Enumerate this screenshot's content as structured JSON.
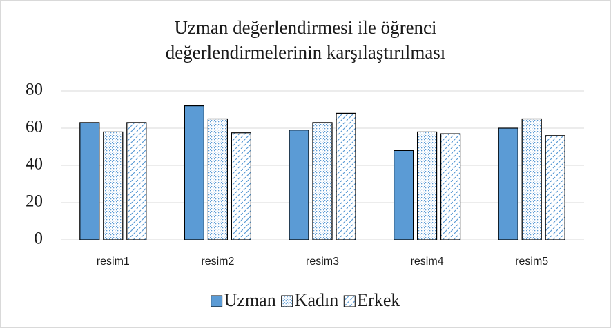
{
  "chart_data": {
    "type": "bar",
    "title": "Uzman değerlendirmesi ile öğrenci\ndeğerlendirmelerinin karşılaştırılması",
    "categories": [
      "resim1",
      "resim2",
      "resim3",
      "resim4",
      "resim5"
    ],
    "series": [
      {
        "name": "Uzman",
        "color": "#5b9bd5",
        "fill": "solid",
        "values": [
          63,
          72,
          59,
          48,
          60
        ]
      },
      {
        "name": "Kadın",
        "color": "#5b9bd5",
        "fill": "dots",
        "values": [
          58,
          65,
          63,
          58,
          65
        ]
      },
      {
        "name": "Erkek",
        "color": "#5b9bd5",
        "fill": "diagonal",
        "values": [
          63,
          57.5,
          68,
          57,
          56
        ]
      }
    ],
    "ylim": [
      0,
      80
    ],
    "yticks": [
      0,
      20,
      40,
      60,
      80
    ],
    "grid": true,
    "legend": "bottom"
  }
}
